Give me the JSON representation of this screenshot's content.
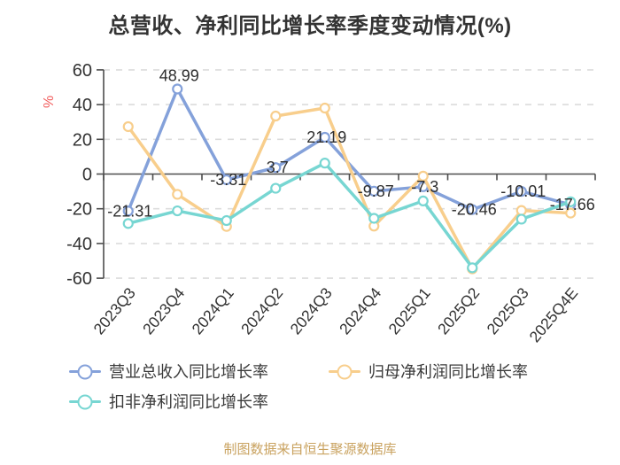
{
  "title": "总营收、净利同比增长率季度变动情况(%)",
  "footer_note": "制图数据来自恒生聚源数据库",
  "chart_data": {
    "type": "line",
    "title": "总营收、净利同比增长率季度变动情况(%)",
    "ylabel": "%",
    "ylim": [
      -60,
      60
    ],
    "yticks": [
      60,
      40,
      20,
      0,
      -20,
      -40,
      -60
    ],
    "grid": "horizontal-dashed",
    "legend_position": "bottom-left",
    "categories": [
      "2023Q3",
      "2023Q4",
      "2024Q1",
      "2024Q2",
      "2024Q3",
      "2024Q4",
      "2025Q1",
      "2025Q2",
      "2025Q3",
      "2025Q4E"
    ],
    "series": [
      {
        "name": "营业总收入同比增长率",
        "color": "#84A1DA",
        "values": [
          -21.31,
          48.99,
          -3.31,
          3.7,
          21.19,
          -9.87,
          -7.3,
          -20.46,
          -10.01,
          -17.66
        ],
        "point_labels": [
          "-21.31",
          "48.99",
          "-3.31",
          "3.7",
          "21.19",
          "-9.87",
          "-7.3",
          "-20.46",
          "-10.01",
          "-17.66"
        ]
      },
      {
        "name": "归母净利润同比增长率",
        "color": "#F8CE8C",
        "values": [
          27.3,
          -11.7,
          -30.2,
          33.4,
          38.0,
          -30.0,
          -1.2,
          -54.6,
          -21.0,
          -22.5
        ]
      },
      {
        "name": "扣非净利润同比增长率",
        "color": "#77D6D2",
        "values": [
          -28.5,
          -21.2,
          -26.8,
          -8.2,
          6.3,
          -25.5,
          -15.5,
          -54.0,
          -26.0,
          -16.0
        ]
      }
    ]
  },
  "colors": {
    "title_text": "#333333",
    "axis": "#4d4d4d",
    "tick_label": "#333333",
    "gridline": "#dcdcdc",
    "y_unit_label": "#F15C5C",
    "data_label": "#2e2e2e",
    "footer_note": "#C9A25F",
    "background": "#ffffff"
  }
}
